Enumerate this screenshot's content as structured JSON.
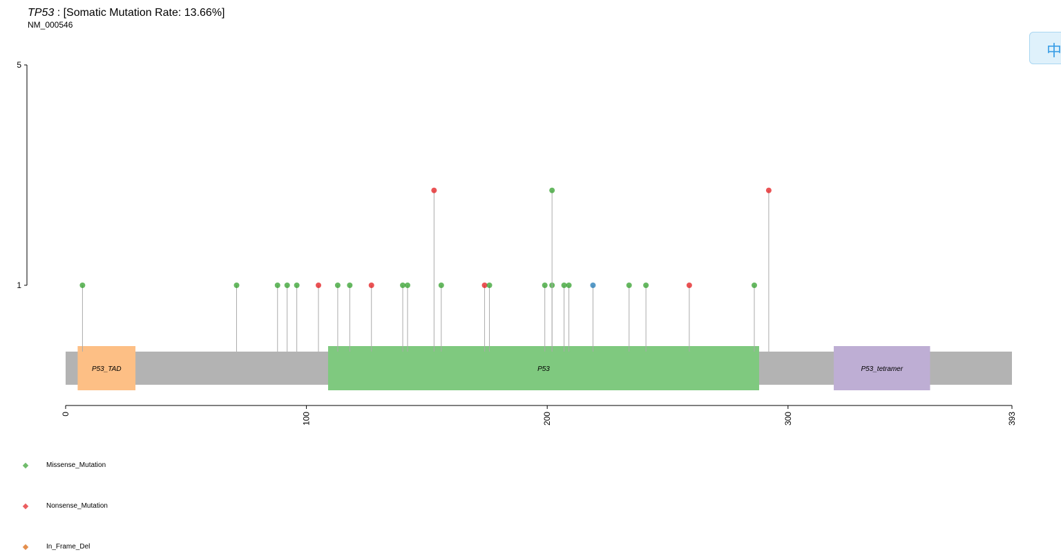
{
  "header": {
    "gene": "TP53",
    "rate_text": " : [Somatic Mutation Rate: 13.66%]",
    "transcript": "NM_000546"
  },
  "side_tab": {
    "glyph": "中",
    "icon": "language-switch-icon"
  },
  "chart_data": {
    "type": "lollipop",
    "protein_length": 393,
    "x_ticks": [
      0,
      100,
      200,
      300,
      393
    ],
    "y_ticks": [
      1,
      5
    ],
    "y_scale": "log",
    "domains": [
      {
        "name": "P53_TAD",
        "start": 5,
        "end": 29,
        "color": "#fdbf85"
      },
      {
        "name": "P53",
        "start": 109,
        "end": 288,
        "color": "#7fc97f"
      },
      {
        "name": "P53_tetramer",
        "start": 319,
        "end": 359,
        "color": "#beaed4"
      }
    ],
    "mutations": [
      {
        "pos": 7,
        "count": 1,
        "type": "Missense_Mutation"
      },
      {
        "pos": 71,
        "count": 1,
        "type": "Missense_Mutation"
      },
      {
        "pos": 88,
        "count": 1,
        "type": "Missense_Mutation"
      },
      {
        "pos": 92,
        "count": 1,
        "type": "Missense_Mutation"
      },
      {
        "pos": 96,
        "count": 1,
        "type": "Missense_Mutation"
      },
      {
        "pos": 105,
        "count": 1,
        "type": "Nonsense_Mutation"
      },
      {
        "pos": 113,
        "count": 1,
        "type": "Missense_Mutation"
      },
      {
        "pos": 118,
        "count": 1,
        "type": "Missense_Mutation"
      },
      {
        "pos": 127,
        "count": 1,
        "type": "Nonsense_Mutation"
      },
      {
        "pos": 140,
        "count": 1,
        "type": "Missense_Mutation"
      },
      {
        "pos": 142,
        "count": 1,
        "type": "Missense_Mutation"
      },
      {
        "pos": 153,
        "count": 2,
        "type": "Nonsense_Mutation"
      },
      {
        "pos": 156,
        "count": 1,
        "type": "Missense_Mutation"
      },
      {
        "pos": 174,
        "count": 1,
        "type": "Nonsense_Mutation"
      },
      {
        "pos": 176,
        "count": 1,
        "type": "Missense_Mutation"
      },
      {
        "pos": 199,
        "count": 1,
        "type": "Missense_Mutation"
      },
      {
        "pos": 202,
        "count": 1,
        "type": "Missense_Mutation"
      },
      {
        "pos": 202,
        "count": 2,
        "type": "Missense_Mutation"
      },
      {
        "pos": 207,
        "count": 1,
        "type": "Missense_Mutation"
      },
      {
        "pos": 209,
        "count": 1,
        "type": "Missense_Mutation"
      },
      {
        "pos": 219,
        "count": 1,
        "type": "Splice_Site"
      },
      {
        "pos": 234,
        "count": 1,
        "type": "Missense_Mutation"
      },
      {
        "pos": 241,
        "count": 1,
        "type": "Missense_Mutation"
      },
      {
        "pos": 259,
        "count": 1,
        "type": "Nonsense_Mutation"
      },
      {
        "pos": 286,
        "count": 1,
        "type": "Missense_Mutation"
      },
      {
        "pos": 292,
        "count": 2,
        "type": "Nonsense_Mutation"
      }
    ],
    "legend": [
      {
        "label": "Missense_Mutation",
        "color": "#33a02c"
      },
      {
        "label": "Nonsense_Mutation",
        "color": "#e31a1c"
      },
      {
        "label": "In_Frame_Del",
        "color": "#d95f02"
      }
    ],
    "colors": {
      "Missense_Mutation": "#33a02c",
      "Nonsense_Mutation": "#e31a1c",
      "Splice_Site": "#1f78b4",
      "backbone": "#b3b3b3",
      "stem": "#aaaaaa"
    }
  }
}
